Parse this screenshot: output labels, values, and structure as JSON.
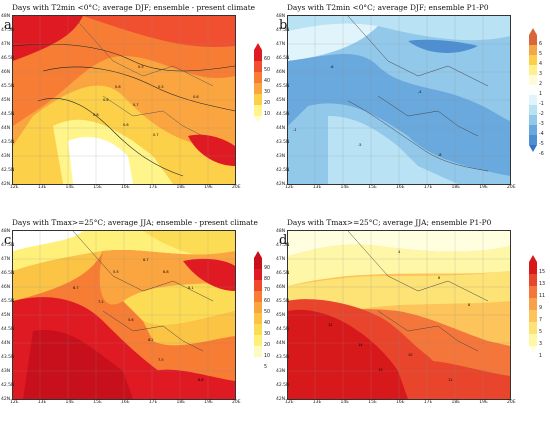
{
  "panels": [
    {
      "label": "a)",
      "title": "Days with  T2min <0°C; average DJF; ensemble - present climate",
      "colorbar": [
        "60",
        "50",
        "40",
        "30",
        "20",
        "10"
      ],
      "colors": [
        "#e01a23",
        "#f05030",
        "#f77d35",
        "#fba540",
        "#fdd04a",
        "#fff58a",
        "#fffbd0"
      ],
      "contours": [
        "0.5",
        "0.6",
        "0.5",
        "0.6",
        "0.6",
        "0.7",
        "0.8",
        "0.6",
        "0.7"
      ]
    },
    {
      "label": "b)",
      "title": "Days with  T2min <0°C; average DJF; ensemble P1-P0",
      "colorbar": [
        "6",
        "5",
        "4",
        "3",
        "2",
        "1",
        "-1",
        "-2",
        "-3",
        "-4",
        "-5",
        "-6"
      ],
      "colors": [
        "#d8663a",
        "#f4a64a",
        "#fad04a",
        "#fff08c",
        "#fffbd6",
        "#ffffff",
        "#e0f4fb",
        "#b9e2f4",
        "#92c8ea",
        "#6aa9dd",
        "#4d8fd2",
        "#3673c4"
      ],
      "contours": [
        "-6",
        "-4",
        "-1",
        "-5",
        "-8"
      ]
    },
    {
      "label": "c)",
      "title": "Days with Tmax>=25°C; average JJA; ensemble - present climate",
      "colorbar": [
        "90",
        "80",
        "70",
        "60",
        "50",
        "40",
        "30",
        "20",
        "10",
        "5"
      ],
      "colors": [
        "#c8101c",
        "#e01a23",
        "#f04a2c",
        "#f77d35",
        "#fba540",
        "#fcc445",
        "#fddc55",
        "#fff07a",
        "#fffbc0",
        "#ffffff"
      ],
      "contours": [
        "6.7",
        "5.5",
        "6.8",
        "6.7",
        "8.1",
        "7.2",
        "5.6",
        "6.2",
        "7.5",
        "8.8"
      ]
    },
    {
      "label": "d)",
      "title": "Days with Tmax>=25°C; average JJA; ensemble P1-P0",
      "colorbar": [
        "15",
        "13",
        "11",
        "9",
        "7",
        "5",
        "3",
        "1"
      ],
      "colors": [
        "#d7191c",
        "#e8452c",
        "#f4763a",
        "#f9a04a",
        "#fcc45a",
        "#fde275",
        "#fff7a8",
        "#ffffe0"
      ],
      "contours": [
        "4",
        "6",
        "8",
        "12",
        "14",
        "10",
        "13",
        "11"
      ]
    }
  ],
  "axes": {
    "lat_ticks": [
      "48N",
      "47.5N",
      "47N",
      "46.5N",
      "46N",
      "45.5N",
      "45N",
      "44.5N",
      "44N",
      "43.5N",
      "43N",
      "42.5N",
      "42N"
    ],
    "lon_ticks": [
      "12E",
      "13E",
      "14E",
      "15E",
      "16E",
      "17E",
      "18E",
      "19E",
      "20E"
    ]
  }
}
